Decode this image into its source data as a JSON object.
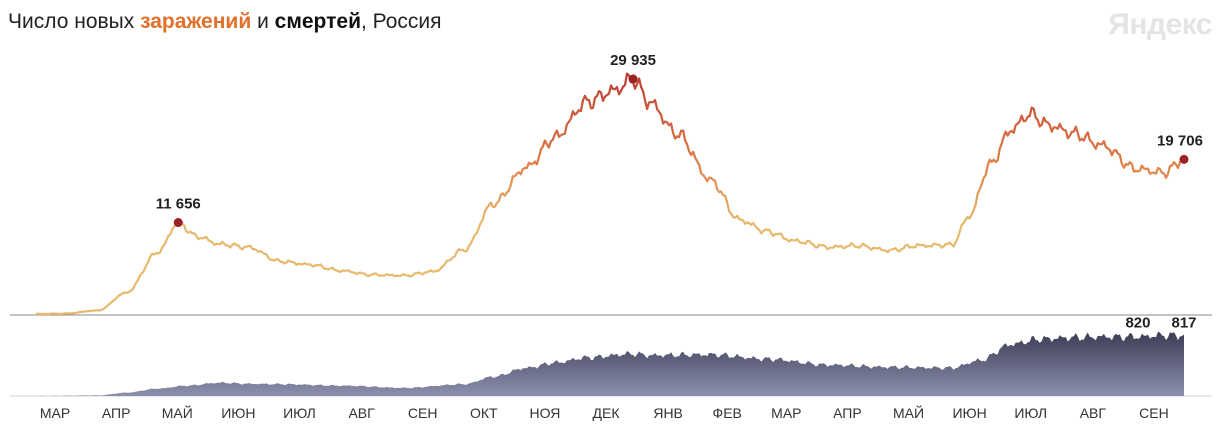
{
  "title": {
    "prefix": "Число новых ",
    "infections": "заражений",
    "middle": " и ",
    "deaths": "смертей",
    "suffix": ", Россия"
  },
  "logo": "Яндекс",
  "colors": {
    "infections_low": "#e6b96c",
    "infections_mid": "#df7a45",
    "infections_high": "#b52e2e",
    "marker": "#9a2224",
    "deaths_top": "#2f3048",
    "deaths_bottom": "#8d90ad",
    "axis": "#888888",
    "label": "#222222"
  },
  "chart_data": [
    {
      "type": "line",
      "series_label": "заражений",
      "months": [
        "МАР",
        "АПР",
        "МАЙ",
        "ИЮН",
        "ИЮЛ",
        "АВГ",
        "СЕН",
        "ОКТ",
        "НОЯ",
        "ДЕК",
        "ЯНВ",
        "ФЕВ",
        "МАР",
        "АПР",
        "МАЙ",
        "ИЮН",
        "ИЮЛ",
        "АВГ",
        "СЕН"
      ],
      "x": [
        "2020-03-01",
        "2020-03-15",
        "2020-04-01",
        "2020-04-15",
        "2020-05-01",
        "2020-05-11",
        "2020-05-20",
        "2020-06-01",
        "2020-06-15",
        "2020-07-01",
        "2020-07-15",
        "2020-08-01",
        "2020-08-15",
        "2020-09-01",
        "2020-09-15",
        "2020-10-01",
        "2020-10-15",
        "2020-11-01",
        "2020-11-15",
        "2020-12-01",
        "2020-12-15",
        "2020-12-24",
        "2021-01-01",
        "2021-01-15",
        "2021-02-01",
        "2021-02-15",
        "2021-03-01",
        "2021-03-15",
        "2021-04-01",
        "2021-04-15",
        "2021-05-01",
        "2021-05-15",
        "2021-06-01",
        "2021-06-10",
        "2021-06-20",
        "2021-07-01",
        "2021-07-10",
        "2021-07-20",
        "2021-08-01",
        "2021-08-15",
        "2021-09-01",
        "2021-09-15",
        "2021-09-25"
      ],
      "values": [
        0,
        50,
        450,
        2700,
        7900,
        11656,
        9900,
        8900,
        8500,
        6700,
        6300,
        5500,
        5000,
        4900,
        5400,
        8200,
        14000,
        18700,
        22500,
        27000,
        28500,
        29935,
        27000,
        23000,
        17000,
        12000,
        10500,
        9300,
        8500,
        8700,
        8100,
        8700,
        8800,
        12500,
        19000,
        23500,
        25500,
        24000,
        23000,
        21500,
        18500,
        18000,
        19706
      ],
      "annotations": [
        {
          "x": "2020-05-11",
          "value": 11656,
          "label": "11 656"
        },
        {
          "x": "2020-12-24",
          "value": 29935,
          "label": "29 935"
        },
        {
          "x": "2021-09-25",
          "value": 19706,
          "label": "19 706"
        }
      ],
      "ylim": [
        0,
        33000
      ]
    },
    {
      "type": "area",
      "series_label": "смертей",
      "x": [
        "2020-03-01",
        "2020-04-01",
        "2020-04-15",
        "2020-05-01",
        "2020-05-15",
        "2020-06-01",
        "2020-06-15",
        "2020-07-01",
        "2020-08-01",
        "2020-09-01",
        "2020-10-01",
        "2020-10-15",
        "2020-11-01",
        "2020-11-15",
        "2020-12-01",
        "2020-12-24",
        "2021-01-01",
        "2021-02-01",
        "2021-03-01",
        "2021-04-01",
        "2021-05-01",
        "2021-06-01",
        "2021-06-15",
        "2021-07-01",
        "2021-07-15",
        "2021-08-01",
        "2021-08-15",
        "2021-09-01",
        "2021-09-15",
        "2021-09-25"
      ],
      "values": [
        0,
        8,
        45,
        100,
        140,
        180,
        165,
        160,
        140,
        110,
        160,
        260,
        380,
        450,
        520,
        570,
        550,
        560,
        500,
        420,
        390,
        380,
        480,
        700,
        770,
        790,
        800,
        800,
        820,
        817
      ],
      "annotations": [
        {
          "x": "2021-09-15",
          "value": 820,
          "label": "820"
        },
        {
          "x": "2021-09-25",
          "value": 817,
          "label": "817"
        }
      ],
      "ylim": [
        0,
        1000
      ]
    }
  ]
}
